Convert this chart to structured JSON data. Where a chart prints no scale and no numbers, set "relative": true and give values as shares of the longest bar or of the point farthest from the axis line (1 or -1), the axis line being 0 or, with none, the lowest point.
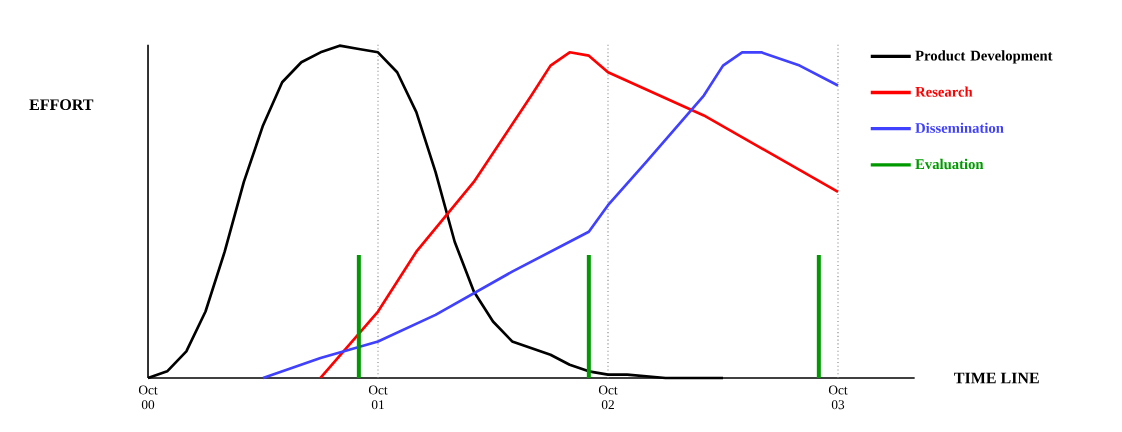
{
  "chart_data": {
    "type": "line",
    "relative": true,
    "xlabel": "TIME LINE",
    "ylabel": "EFFORT",
    "xlim": [
      "2000-10",
      "2004-02"
    ],
    "xticks": [
      {
        "value": "2000-10",
        "label": "Oct 00"
      },
      {
        "value": "2001-10",
        "label": "Oct 01"
      },
      {
        "value": "2002-10",
        "label": "Oct 02"
      },
      {
        "value": "2003-10",
        "label": "Oct 03"
      }
    ],
    "ref_lines": [
      {
        "axis": "x",
        "value": "2001-10",
        "color": "#808080",
        "line_style": "dotted"
      },
      {
        "axis": "x",
        "value": "2002-10",
        "color": "#808080",
        "line_style": "dotted"
      },
      {
        "axis": "x",
        "value": "2003-10",
        "color": "#808080",
        "line_style": "dotted"
      }
    ],
    "legend": "right",
    "series": [
      {
        "name": "Product Development",
        "color": "#000000",
        "x": [
          "2000-10",
          "2000-11",
          "2000-12",
          "2001-01",
          "2001-02",
          "2001-03",
          "2001-04",
          "2001-05",
          "2001-06",
          "2001-07",
          "2001-08",
          "2001-09",
          "2001-10",
          "2001-11",
          "2001-12",
          "2002-01",
          "2002-02",
          "2002-03",
          "2002-04",
          "2002-05",
          "2002-07",
          "2002-08",
          "2002-09",
          "2002-10",
          "2002-11",
          "2003-01",
          "2003-04"
        ],
        "values": [
          0,
          0.02,
          0.08,
          0.2,
          0.38,
          0.59,
          0.76,
          0.89,
          0.95,
          0.98,
          1,
          0.99,
          0.98,
          0.92,
          0.8,
          0.62,
          0.41,
          0.26,
          0.17,
          0.11,
          0.07,
          0.04,
          0.02,
          0.01,
          0.01,
          0,
          0
        ]
      },
      {
        "name": "Research",
        "color": "#ff0000",
        "x": [
          "2001-07",
          "2001-10",
          "2001-12",
          "2002-03",
          "2002-06",
          "2002-07",
          "2002-08",
          "2002-09",
          "2002-10",
          "2003-03",
          "2003-10"
        ],
        "values": [
          0,
          0.2,
          0.38,
          0.59,
          0.85,
          0.94,
          0.98,
          0.97,
          0.92,
          0.79,
          0.56
        ]
      },
      {
        "name": "Dissemination",
        "color": "#4040ff",
        "x": [
          "2001-04",
          "2001-07",
          "2001-10",
          "2002-01",
          "2002-05",
          "2002-09",
          "2002-10",
          "2002-12",
          "2003-03",
          "2003-04",
          "2003-05",
          "2003-06",
          "2003-08",
          "2003-10"
        ],
        "values": [
          0,
          0.06,
          0.11,
          0.19,
          0.32,
          0.44,
          0.52,
          0.65,
          0.85,
          0.94,
          0.98,
          0.98,
          0.94,
          0.88
        ]
      },
      {
        "name": "Evaluation",
        "type": "bar",
        "color": "#009900",
        "x": [
          "2001-09",
          "2002-09",
          "2003-09"
        ],
        "values": [
          0.37,
          0.37,
          0.37
        ]
      }
    ]
  }
}
